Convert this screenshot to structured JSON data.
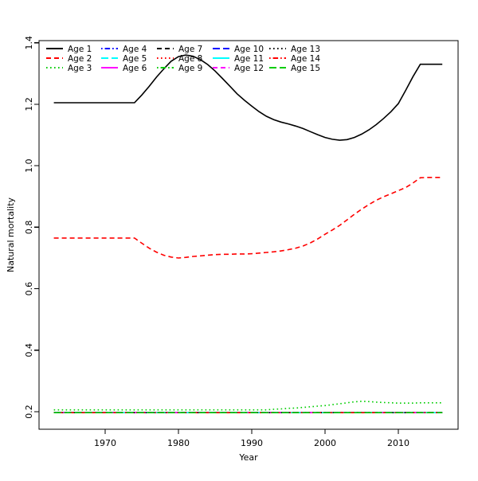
{
  "figure": {
    "background": "#ffffff"
  },
  "chart_data": {
    "type": "line",
    "title": "",
    "xlabel": "Year",
    "ylabel": "Natural mortality",
    "grid": false,
    "legend_position": "top-left",
    "legend_columns": 5,
    "legend_rows": 3,
    "xlim": [
      1960.98,
      2018.15
    ],
    "ylim": [
      0.143,
      1.407
    ],
    "x_ticks": [
      {
        "value": 1970,
        "label": "1970"
      },
      {
        "value": 1980,
        "label": "1980"
      },
      {
        "value": 1990,
        "label": "1990"
      },
      {
        "value": 2000,
        "label": "2000"
      },
      {
        "value": 2010,
        "label": "2010"
      }
    ],
    "y_ticks": [
      {
        "value": 0.2,
        "label": "0.2"
      },
      {
        "value": 0.4,
        "label": "0.4"
      },
      {
        "value": 0.6,
        "label": "0.6"
      },
      {
        "value": 0.8,
        "label": "0.8"
      },
      {
        "value": 1.0,
        "label": "1.0"
      },
      {
        "value": 1.2,
        "label": "1.2"
      },
      {
        "value": 1.4,
        "label": "1.4"
      }
    ],
    "palette": {
      "black": "#000000",
      "red": "#FF0000",
      "green": "#00CD00",
      "blue": "#0000FF",
      "cyan": "#00FFFF",
      "magenta": "#FF00FF"
    },
    "x": [
      1963,
      1964,
      1965,
      1966,
      1967,
      1968,
      1969,
      1970,
      1971,
      1972,
      1973,
      1974,
      1975,
      1976,
      1977,
      1978,
      1979,
      1980,
      1981,
      1982,
      1983,
      1984,
      1985,
      1986,
      1987,
      1988,
      1989,
      1990,
      1991,
      1992,
      1993,
      1994,
      1995,
      1996,
      1997,
      1998,
      1999,
      2000,
      2001,
      2002,
      2003,
      2004,
      2005,
      2006,
      2007,
      2008,
      2009,
      2010,
      2011,
      2012,
      2013,
      2014,
      2015,
      2016
    ],
    "series": [
      {
        "name": "Age 1",
        "color": "#000000",
        "dash": "solid",
        "values": [
          1.205,
          1.205,
          1.205,
          1.205,
          1.205,
          1.205,
          1.205,
          1.205,
          1.205,
          1.205,
          1.205,
          1.205,
          1.23,
          1.258,
          1.288,
          1.315,
          1.34,
          1.355,
          1.36,
          1.356,
          1.345,
          1.329,
          1.308,
          1.284,
          1.259,
          1.234,
          1.213,
          1.194,
          1.176,
          1.161,
          1.15,
          1.142,
          1.136,
          1.129,
          1.121,
          1.111,
          1.101,
          1.092,
          1.086,
          1.083,
          1.085,
          1.092,
          1.103,
          1.117,
          1.134,
          1.154,
          1.176,
          1.202,
          1.245,
          1.29,
          1.33,
          1.33,
          1.33,
          1.33
        ]
      },
      {
        "name": "Age 2",
        "color": "#FF0000",
        "dash": "dashed",
        "values": [
          0.765,
          0.765,
          0.765,
          0.765,
          0.765,
          0.765,
          0.765,
          0.765,
          0.765,
          0.765,
          0.765,
          0.765,
          0.748,
          0.732,
          0.719,
          0.709,
          0.703,
          0.7,
          0.702,
          0.705,
          0.707,
          0.709,
          0.711,
          0.712,
          0.712,
          0.713,
          0.713,
          0.714,
          0.716,
          0.718,
          0.72,
          0.723,
          0.727,
          0.732,
          0.739,
          0.749,
          0.762,
          0.777,
          0.791,
          0.806,
          0.824,
          0.842,
          0.859,
          0.874,
          0.888,
          0.899,
          0.909,
          0.919,
          0.929,
          0.944,
          0.961,
          0.962,
          0.962,
          0.962
        ]
      },
      {
        "name": "Age 3",
        "color": "#00CD00",
        "dash": "dotted",
        "values": [
          0.206,
          0.206,
          0.206,
          0.206,
          0.206,
          0.206,
          0.206,
          0.206,
          0.206,
          0.206,
          0.206,
          0.206,
          0.206,
          0.206,
          0.206,
          0.206,
          0.206,
          0.206,
          0.206,
          0.206,
          0.206,
          0.206,
          0.206,
          0.206,
          0.206,
          0.206,
          0.206,
          0.206,
          0.206,
          0.206,
          0.208,
          0.209,
          0.211,
          0.212,
          0.214,
          0.216,
          0.218,
          0.22,
          0.223,
          0.226,
          0.229,
          0.232,
          0.234,
          0.233,
          0.231,
          0.23,
          0.229,
          0.228,
          0.228,
          0.228,
          0.229,
          0.229,
          0.229,
          0.229
        ]
      },
      {
        "name": "Age 4",
        "color": "#0000FF",
        "dash": "dotdash",
        "constant": 0.197
      },
      {
        "name": "Age 5",
        "color": "#00FFFF",
        "dash": "longdash",
        "constant": 0.197
      },
      {
        "name": "Age 6",
        "color": "#FF00FF",
        "dash": "solid",
        "constant": 0.197
      },
      {
        "name": "Age 7",
        "color": "#000000",
        "dash": "dashed",
        "constant": 0.197
      },
      {
        "name": "Age 8",
        "color": "#FF0000",
        "dash": "dotted",
        "constant": 0.197
      },
      {
        "name": "Age 9",
        "color": "#00CD00",
        "dash": "dotdash",
        "constant": 0.197
      },
      {
        "name": "Age 10",
        "color": "#0000FF",
        "dash": "longdash",
        "constant": 0.197
      },
      {
        "name": "Age 11",
        "color": "#00FFFF",
        "dash": "solid",
        "constant": 0.197
      },
      {
        "name": "Age 12",
        "color": "#FF00FF",
        "dash": "dashed",
        "constant": 0.197
      },
      {
        "name": "Age 13",
        "color": "#000000",
        "dash": "dotted",
        "constant": 0.197
      },
      {
        "name": "Age 14",
        "color": "#FF0000",
        "dash": "dotdash",
        "constant": 0.197
      },
      {
        "name": "Age 15",
        "color": "#00CD00",
        "dash": "longdash",
        "constant": 0.197
      }
    ]
  }
}
